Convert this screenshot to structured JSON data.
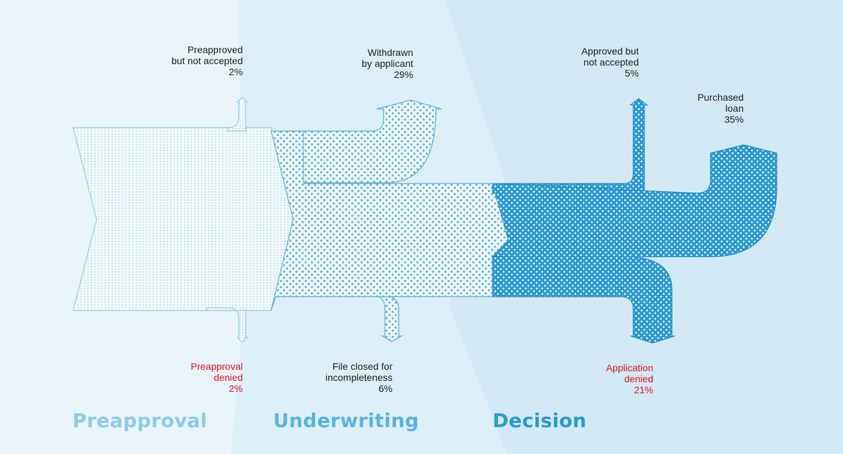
{
  "stages": [
    {
      "name": "Preapproval",
      "color": "#8dcbe8"
    },
    {
      "name": "Underwriting",
      "color": "#5ab3de"
    },
    {
      "name": "Decision",
      "color": "#2a9ad3"
    }
  ],
  "outcomes": [
    {
      "id": "preapproved-not-accepted",
      "lines": [
        "Preapproved",
        "but not accepted"
      ],
      "pct": "2%",
      "direction": "up",
      "highlight": false
    },
    {
      "id": "withdrawn-by-applicant",
      "lines": [
        "Withdrawn",
        "by applicant"
      ],
      "pct": "29%",
      "direction": "up",
      "highlight": false
    },
    {
      "id": "approved-not-accepted",
      "lines": [
        "Approved but",
        "not accepted"
      ],
      "pct": "5%",
      "direction": "up",
      "highlight": false
    },
    {
      "id": "purchased-loan",
      "lines": [
        "Purchased",
        "loan"
      ],
      "pct": "35%",
      "direction": "up",
      "highlight": false
    },
    {
      "id": "preapproval-denied",
      "lines": [
        "Preapproval",
        "denied"
      ],
      "pct": "2%",
      "direction": "down",
      "highlight": true
    },
    {
      "id": "file-closed-incompleteness",
      "lines": [
        "File closed for",
        "incompleteness"
      ],
      "pct": "6%",
      "direction": "down",
      "highlight": false
    },
    {
      "id": "application-denied",
      "lines": [
        "Application",
        "denied"
      ],
      "pct": "21%",
      "direction": "down",
      "highlight": true
    }
  ],
  "colors": {
    "background": "#e9f4fb",
    "band_middle": "#ddeff9",
    "band_right": "#d3e9f6",
    "text": "#222222",
    "denied": "#e8101a"
  }
}
